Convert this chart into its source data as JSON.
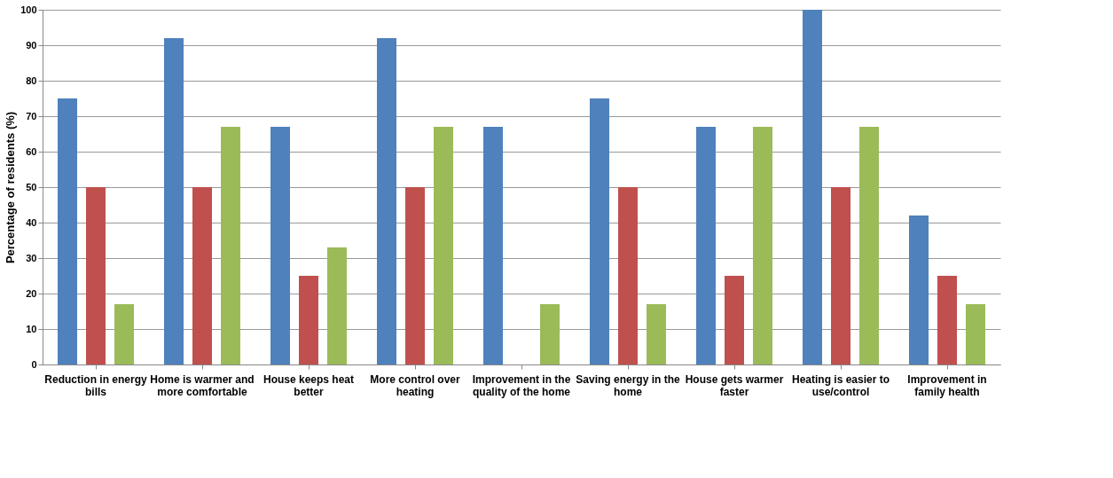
{
  "chart_data": {
    "type": "bar",
    "ylabel": "Percentage of residents (%)",
    "categories": [
      "Reduction in energy bills",
      "Home is warmer and more comfortable",
      "House keeps heat better",
      "More control over heating",
      "Improvement in the quality of the home",
      "Saving energy in the home",
      "House gets warmer faster",
      "Heating is easier to use/control",
      "Improvement in family health"
    ],
    "series": [
      {
        "color": "#4f81bd",
        "values": [
          75,
          92,
          67,
          92,
          67,
          75,
          67,
          100,
          42
        ]
      },
      {
        "color": "#c0504d",
        "values": [
          50,
          50,
          25,
          50,
          0,
          50,
          25,
          50,
          25
        ]
      },
      {
        "color": "#9bbb59",
        "values": [
          17,
          67,
          33,
          67,
          17,
          17,
          67,
          67,
          17
        ]
      }
    ],
    "ylim": [
      0,
      100
    ],
    "yticks": [
      0,
      10,
      20,
      30,
      40,
      50,
      60,
      70,
      80,
      90,
      100
    ],
    "grid": "y",
    "legend": false
  }
}
